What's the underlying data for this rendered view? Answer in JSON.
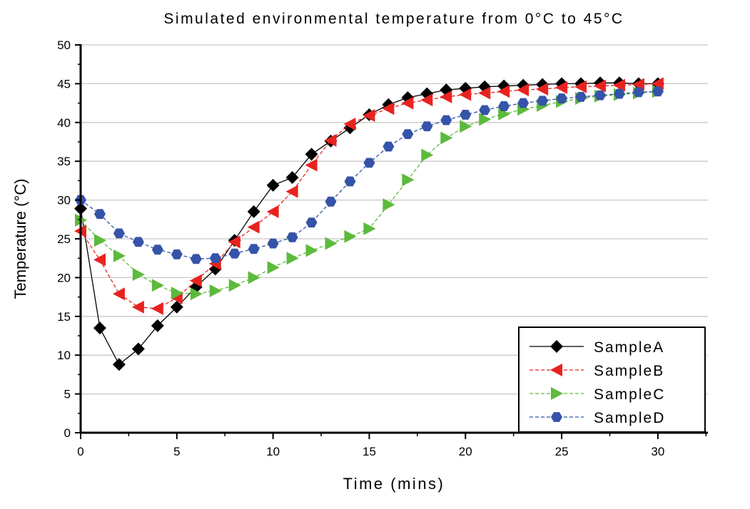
{
  "chart_data": {
    "type": "line",
    "title": "Simulated environmental temperature from 0°C to 45°C",
    "xlabel": "Time (mins)",
    "ylabel": "Temperature (°C)",
    "xlim": [
      0,
      32.6
    ],
    "ylim": [
      0,
      50
    ],
    "xticks": [
      0,
      5,
      10,
      15,
      20,
      25,
      30
    ],
    "yticks": [
      0,
      5,
      10,
      15,
      20,
      25,
      30,
      35,
      40,
      45,
      50
    ],
    "grid": "horizontal",
    "legend_position": "bottom-right",
    "x": [
      0,
      1,
      2,
      3,
      4,
      5,
      6,
      7,
      8,
      9,
      10,
      11,
      12,
      13,
      14,
      15,
      16,
      17,
      18,
      19,
      20,
      21,
      22,
      23,
      24,
      25,
      26,
      27,
      28,
      29,
      30
    ],
    "series": [
      {
        "name": "SampleA",
        "color": "#000000",
        "marker": "diamond",
        "line": "solid",
        "values": [
          28.9,
          13.5,
          8.8,
          10.8,
          13.8,
          16.2,
          18.8,
          21.1,
          24.8,
          28.5,
          31.9,
          32.9,
          35.9,
          37.6,
          39.3,
          41.0,
          42.3,
          43.2,
          43.7,
          44.2,
          44.4,
          44.6,
          44.7,
          44.8,
          44.9,
          45.0,
          45.0,
          45.1,
          45.1,
          45.0,
          45.0
        ]
      },
      {
        "name": "SampleB",
        "color": "#e8231f",
        "marker": "triangle-left",
        "line": "dashed",
        "values": [
          26.0,
          22.3,
          17.9,
          16.2,
          16.0,
          17.4,
          19.6,
          21.8,
          24.6,
          26.5,
          28.5,
          31.1,
          34.5,
          37.7,
          39.8,
          40.9,
          41.8,
          42.5,
          42.9,
          43.3,
          43.6,
          43.8,
          44.0,
          44.2,
          44.3,
          44.5,
          44.6,
          44.7,
          44.8,
          44.9,
          45.0
        ]
      },
      {
        "name": "SampleC",
        "color": "#5cba3c",
        "marker": "triangle-right",
        "line": "dashed",
        "values": [
          27.4,
          24.8,
          22.8,
          20.4,
          19.0,
          18.0,
          17.9,
          18.3,
          19.0,
          20.0,
          21.3,
          22.5,
          23.5,
          24.4,
          25.3,
          26.3,
          29.4,
          32.6,
          35.8,
          38.0,
          39.5,
          40.4,
          41.1,
          41.7,
          42.2,
          42.7,
          43.1,
          43.4,
          43.6,
          43.8,
          44.0
        ]
      },
      {
        "name": "SampleD",
        "color": "#3553a8",
        "marker": "hexagon",
        "line": "dashed",
        "values": [
          30.0,
          28.2,
          25.7,
          24.6,
          23.6,
          23.0,
          22.4,
          22.5,
          23.1,
          23.7,
          24.4,
          25.2,
          27.1,
          29.8,
          32.4,
          34.8,
          36.9,
          38.5,
          39.5,
          40.3,
          41.0,
          41.6,
          42.1,
          42.5,
          42.8,
          43.1,
          43.3,
          43.5,
          43.7,
          43.9,
          44.0
        ]
      }
    ]
  }
}
